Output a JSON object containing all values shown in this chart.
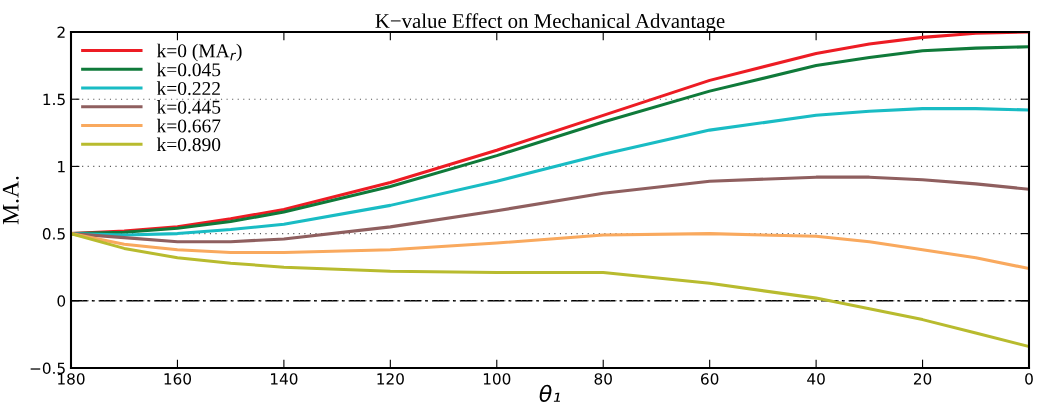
{
  "chart_data": {
    "type": "line",
    "title": "K−value Effect on Mechanical Advantage",
    "xlabel": "θ₁",
    "ylabel": "M.A.",
    "x": [
      180,
      170,
      160,
      150,
      140,
      120,
      100,
      80,
      60,
      40,
      30,
      20,
      10,
      0
    ],
    "series": [
      {
        "name": "k=0 (MA$_{r}$)",
        "color": "#ed1c24",
        "values": [
          0.5,
          0.52,
          0.55,
          0.61,
          0.68,
          0.88,
          1.12,
          1.38,
          1.64,
          1.84,
          1.91,
          1.96,
          1.99,
          2.0
        ]
      },
      {
        "name": "k=0.045",
        "color": "#0f7a3a",
        "values": [
          0.5,
          0.51,
          0.54,
          0.59,
          0.66,
          0.85,
          1.08,
          1.33,
          1.56,
          1.75,
          1.81,
          1.86,
          1.88,
          1.89
        ]
      },
      {
        "name": "k=0.222",
        "color": "#19bcc4",
        "values": [
          0.5,
          0.49,
          0.5,
          0.53,
          0.57,
          0.71,
          0.89,
          1.09,
          1.27,
          1.38,
          1.41,
          1.43,
          1.43,
          1.42
        ]
      },
      {
        "name": "k=0.445",
        "color": "#8f5f5f",
        "values": [
          0.5,
          0.47,
          0.44,
          0.44,
          0.46,
          0.55,
          0.67,
          0.8,
          0.89,
          0.92,
          0.92,
          0.9,
          0.87,
          0.83
        ]
      },
      {
        "name": "k=0.667",
        "color": "#f9a95e",
        "values": [
          0.5,
          0.42,
          0.38,
          0.36,
          0.36,
          0.38,
          0.43,
          0.49,
          0.5,
          0.48,
          0.44,
          0.38,
          0.32,
          0.24
        ]
      },
      {
        "name": "k=0.890",
        "color": "#b8bb2e",
        "values": [
          0.5,
          0.39,
          0.32,
          0.28,
          0.25,
          0.22,
          0.21,
          0.21,
          0.13,
          0.02,
          -0.06,
          -0.14,
          -0.24,
          -0.34
        ]
      }
    ],
    "xlim": [
      180,
      0
    ],
    "xticks": [
      180,
      160,
      140,
      120,
      100,
      80,
      60,
      40,
      20,
      0
    ],
    "ylim": [
      -0.5,
      2
    ],
    "yticks": [
      {
        "value": -0.5,
        "label": "−0.5"
      },
      0,
      0.5,
      1,
      1.5,
      2
    ],
    "ref_lines": [
      {
        "axis": "y",
        "value": 0,
        "color": "#000000",
        "line_style": "dashdot"
      }
    ],
    "grid": "y",
    "legend": "top left",
    "line_style": "solid",
    "marker": "none"
  }
}
